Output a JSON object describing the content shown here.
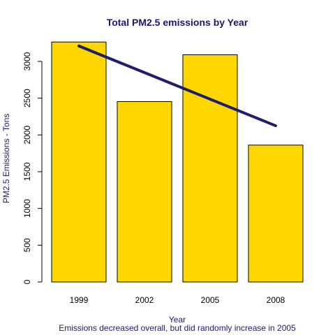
{
  "chart_data": {
    "type": "bar",
    "title": "Total PM2.5 emissions by Year",
    "xlabel": "Year",
    "subtitle": "Emissions decreased overall, but did randomly increase in 2005",
    "ylabel": "PM2.5 Emissions - Tons",
    "categories": [
      "1999",
      "2002",
      "2005",
      "2008"
    ],
    "values": [
      3264,
      2454,
      3091,
      1862
    ],
    "trend_line": {
      "start": 3210,
      "end": 2125
    },
    "ylim": [
      0,
      3300
    ],
    "yticks": [
      0,
      500,
      1000,
      1500,
      2000,
      2500,
      3000
    ],
    "grid": false,
    "colors": {
      "bar_fill": "#FFD700",
      "bar_stroke": "#000000",
      "trend_line": "#1E1E6E",
      "text": "#191970"
    }
  }
}
